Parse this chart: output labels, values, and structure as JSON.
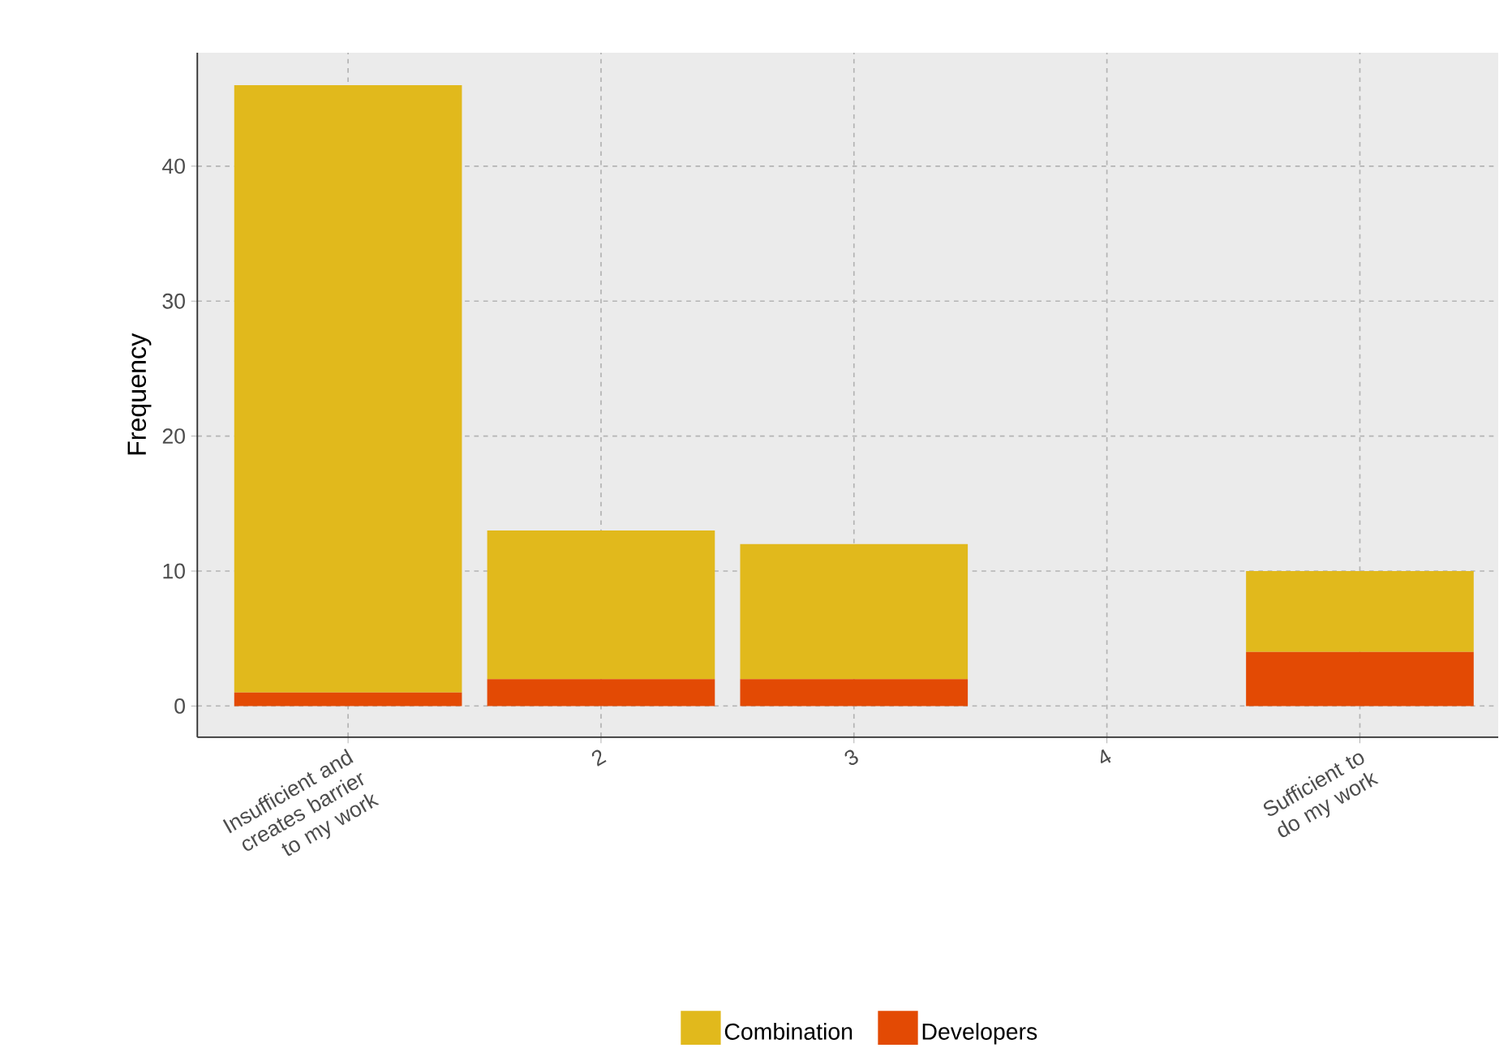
{
  "chart_data": {
    "type": "bar",
    "stacked": true,
    "ylabel": "Frequency",
    "categories": [
      "Insufficient and creates barrier to my work",
      "2",
      "3",
      "4",
      "Sufficient to do my work"
    ],
    "series": [
      {
        "name": "Developers",
        "color": "#e34a04",
        "values": [
          1,
          2,
          2,
          null,
          4
        ]
      },
      {
        "name": "Combination",
        "color": "#e1b91c",
        "values": [
          45,
          11,
          10,
          null,
          6
        ]
      }
    ],
    "ylim": [
      -2.3,
      48.4
    ],
    "yticks": [
      0,
      10,
      20,
      30,
      40
    ],
    "grid": true,
    "legend": "bottom"
  }
}
